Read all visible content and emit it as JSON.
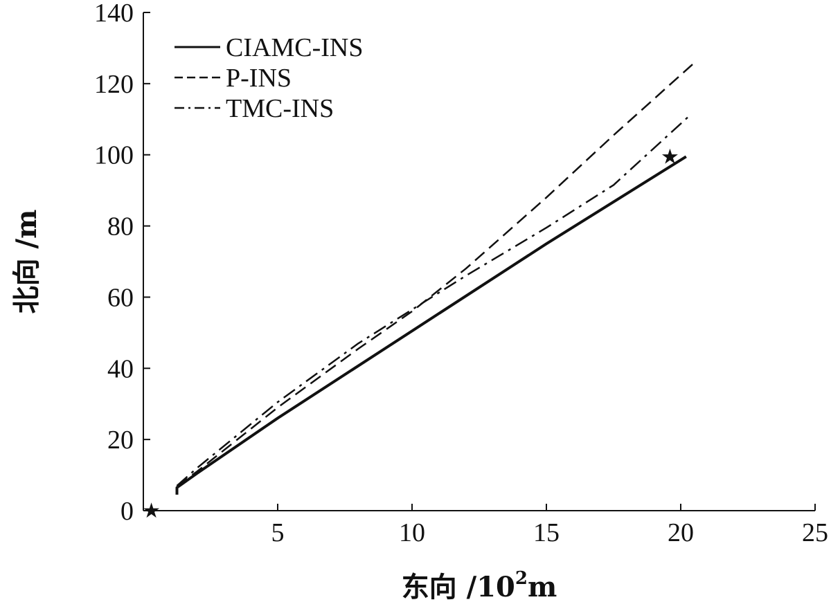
{
  "chart_data": {
    "type": "line",
    "title": "",
    "xlabel": "东向 /10²m",
    "ylabel": "北向 /m",
    "xlim": [
      0,
      25
    ],
    "ylim": [
      0,
      140
    ],
    "x_ticks": [
      "5",
      "10",
      "15",
      "20",
      "25"
    ],
    "y_ticks": [
      "0",
      "20",
      "40",
      "60",
      "80",
      "100",
      "120",
      "140"
    ],
    "grid": false,
    "legend_position": "top-left",
    "series": [
      {
        "name": "CIAMC-INS",
        "style": "solid",
        "color": "#111111",
        "x": [
          1.25,
          1.25,
          2.0,
          5.0,
          10.0,
          15.0,
          20.2
        ],
        "y": [
          4.5,
          6.5,
          10.5,
          26.0,
          50.5,
          75.0,
          99.5
        ]
      },
      {
        "name": "P-INS",
        "style": "dashed",
        "color": "#111111",
        "x": [
          1.25,
          2.0,
          5.0,
          8.0,
          10.0,
          12.0,
          15.0,
          17.5,
          20.6
        ],
        "y": [
          7.0,
          11.0,
          29.0,
          45.5,
          56.0,
          68.0,
          88.0,
          105.5,
          126.5
        ]
      },
      {
        "name": "TMC-INS",
        "style": "dash-dot",
        "color": "#111111",
        "x": [
          1.25,
          2.0,
          5.0,
          8.0,
          10.0,
          12.0,
          15.0,
          17.5,
          20.4
        ],
        "y": [
          7.0,
          12.0,
          30.5,
          47.0,
          56.5,
          66.0,
          79.5,
          91.5,
          111.5
        ]
      }
    ],
    "markers": [
      {
        "name": "start-marker",
        "symbol": "★",
        "x": 0.3,
        "y": 0.0
      },
      {
        "name": "end-marker",
        "symbol": "★",
        "x": 19.6,
        "y": 99.5
      }
    ]
  }
}
